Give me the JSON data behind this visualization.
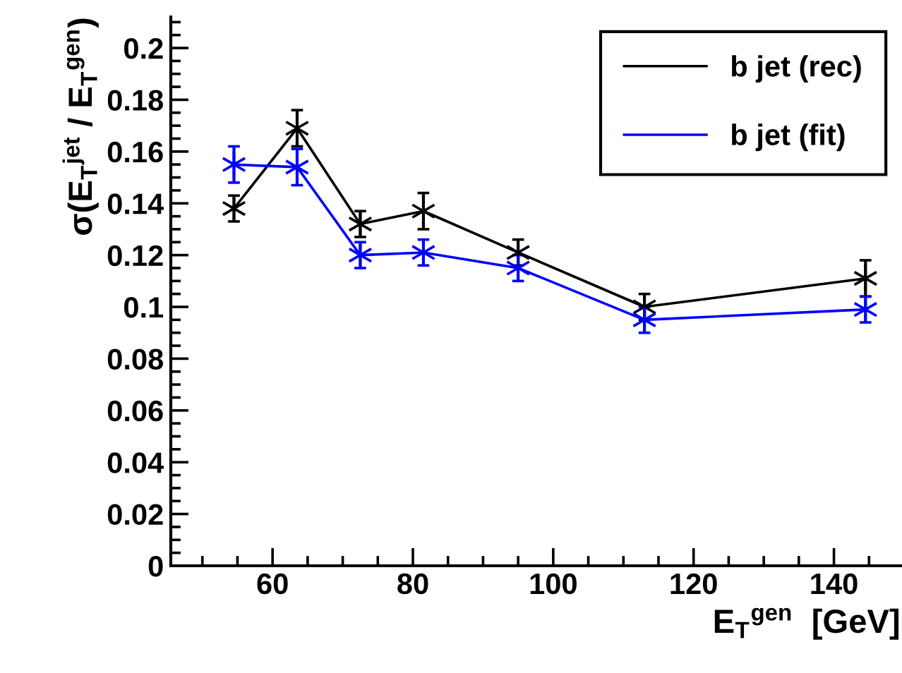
{
  "chart_data": {
    "type": "line",
    "xlabel": "E$_{T}$$^{gen}$  [GeV]",
    "ylabel": "σ(E$_{T}$$^{jet}$ / E$_{T}$$^{gen}$)",
    "x": [
      54.5,
      63.5,
      72.5,
      81.5,
      95,
      113,
      144.5
    ],
    "series": [
      {
        "name": "b jet (rec)",
        "color": "#000000",
        "values": [
          0.138,
          0.169,
          0.132,
          0.137,
          0.121,
          0.1,
          0.111
        ],
        "errors": [
          0.005,
          0.007,
          0.005,
          0.007,
          0.005,
          0.005,
          0.007
        ]
      },
      {
        "name": "b jet (fit)",
        "color": "#0000ff",
        "values": [
          0.155,
          0.154,
          0.12,
          0.121,
          0.115,
          0.095,
          0.099
        ],
        "errors": [
          0.007,
          0.007,
          0.005,
          0.005,
          0.005,
          0.005,
          0.005
        ]
      }
    ],
    "xlim": [
      45.5,
      149.5
    ],
    "xticks": [
      60,
      80,
      100,
      120,
      140
    ],
    "ylim": [
      0,
      0.212
    ],
    "yticks": [
      0,
      0.02,
      0.04,
      0.06,
      0.08,
      0.1,
      0.12,
      0.14,
      0.16,
      0.18,
      0.2
    ],
    "marker": "cross",
    "line_style": "solid",
    "legend": "top right",
    "grid": false
  }
}
